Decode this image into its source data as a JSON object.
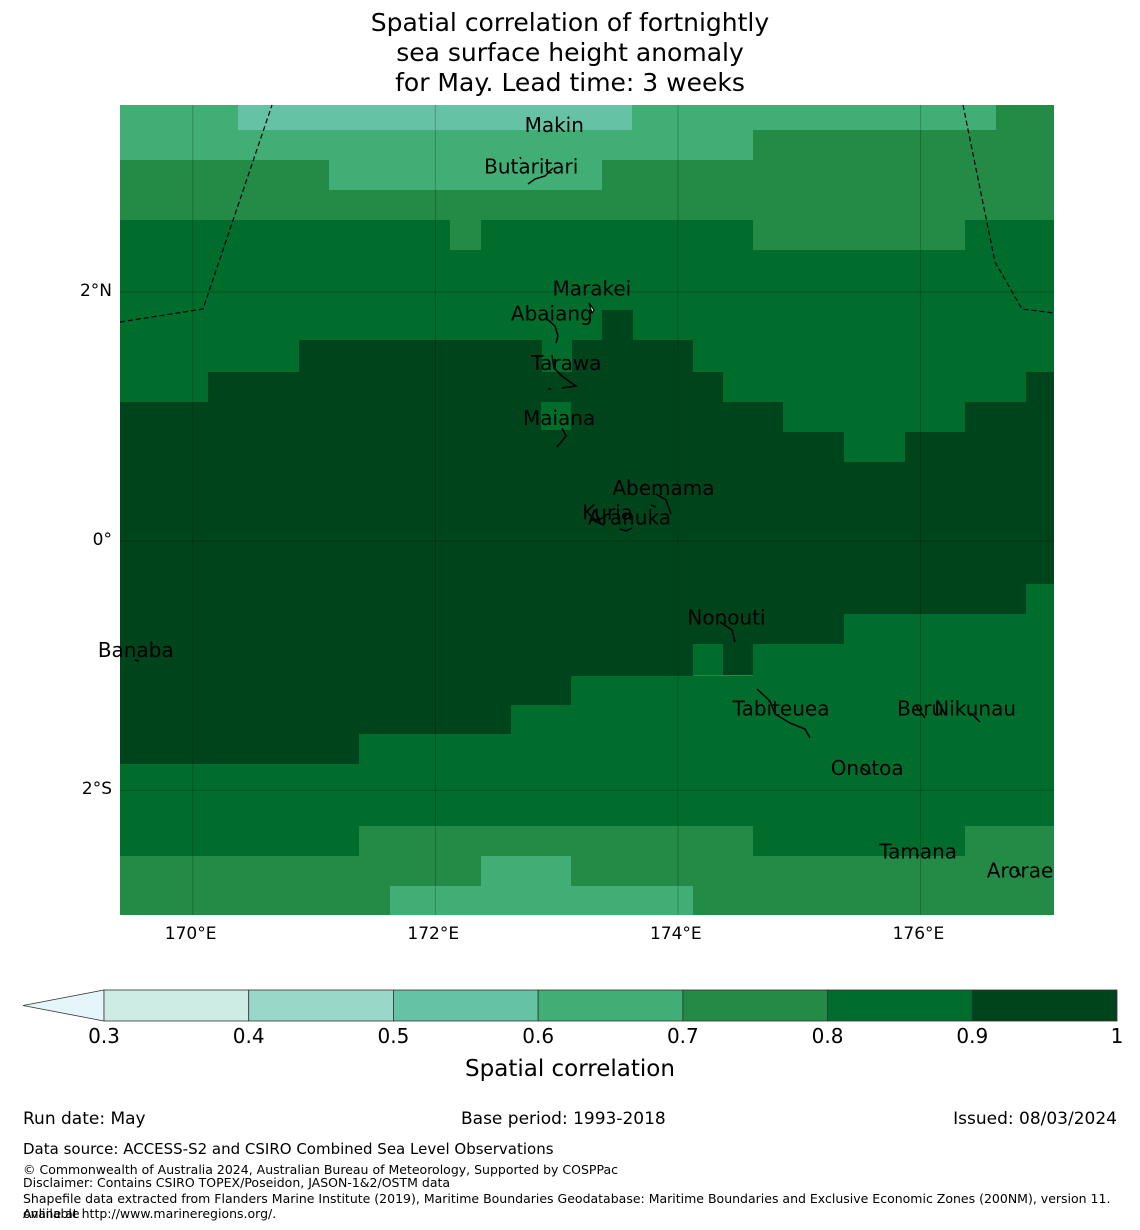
{
  "title": [
    "Spatial correlation of fortnightly",
    "sea surface height anomaly",
    "for May. Lead time: 3 weeks"
  ],
  "map": {
    "lon_range": [
      169.4,
      177.1
    ],
    "lat_range": [
      -3.0,
      3.5
    ],
    "x_ticks": [
      {
        "lon": 170,
        "label": "170°E"
      },
      {
        "lon": 172,
        "label": "172°E"
      },
      {
        "lon": 174,
        "label": "174°E"
      },
      {
        "lon": 176,
        "label": "176°E"
      }
    ],
    "y_ticks": [
      {
        "lat": 2,
        "label": "2°N"
      },
      {
        "lat": 0,
        "label": "0°"
      },
      {
        "lat": -2,
        "label": "2°S"
      }
    ],
    "islands": [
      {
        "name": "Makin",
        "lon": 172.98,
        "lat": 3.33
      },
      {
        "name": "Butaritari",
        "lon": 172.79,
        "lat": 3.0
      },
      {
        "name": "Marakei",
        "lon": 173.29,
        "lat": 2.02
      },
      {
        "name": "Abaiang",
        "lon": 172.96,
        "lat": 1.82
      },
      {
        "name": "Tarawa",
        "lon": 173.08,
        "lat": 1.42
      },
      {
        "name": "Maiana",
        "lon": 173.02,
        "lat": 0.98
      },
      {
        "name": "Abemama",
        "lon": 173.88,
        "lat": 0.42
      },
      {
        "name": "Kuria",
        "lon": 173.42,
        "lat": 0.22
      },
      {
        "name": "Aranuka",
        "lon": 173.6,
        "lat": 0.18
      },
      {
        "name": "Nonouti",
        "lon": 174.4,
        "lat": -0.62
      },
      {
        "name": "Banaba",
        "lon": 169.53,
        "lat": -0.88
      },
      {
        "name": "Tabiteuea",
        "lon": 174.85,
        "lat": -1.35
      },
      {
        "name": "Beru",
        "lon": 176.0,
        "lat": -1.35
      },
      {
        "name": "Nikunau",
        "lon": 176.45,
        "lat": -1.35
      },
      {
        "name": "Onotoa",
        "lon": 175.56,
        "lat": -1.83
      },
      {
        "name": "Tamana",
        "lon": 175.98,
        "lat": -2.5
      },
      {
        "name": "Arorae",
        "lon": 176.82,
        "lat": -2.65
      }
    ]
  },
  "colorbar": {
    "labels": [
      "0.3",
      "0.4",
      "0.5",
      "0.6",
      "0.7",
      "0.8",
      "0.9",
      "1"
    ],
    "colors": [
      "#cdece4",
      "#99d8c9",
      "#66c2a4",
      "#41ae76",
      "#238b45",
      "#006d2c",
      "#00441b"
    ],
    "extend_color": "#e5f5f9",
    "title": "Spatial correlation"
  },
  "info": {
    "run_date": "Run date: May",
    "base_period": "Base period: 1993-2018",
    "issued": "Issued: 08/03/2024"
  },
  "footer": {
    "data_source": "Data source: ACCESS-S2 and CSIRO Combined Sea Level Observations",
    "copyright": "© Commonwealth of Australia 2024, Australian Bureau of Meteorology, Supported by COSPPac",
    "disclaimer": "Disclaimer: Contains CSIRO TOPEX/Poseidon, JASON-1&2/OSTM data",
    "shapefile_1": "Shapefile data extracted from Flanders Marine Institute (2019), Maritime Boundaries Geodatabase: Maritime Boundaries and Exclusive Economic Zones (200NM), version 11. Available",
    "shapefile_2": "online at http://www.marineregions.org/."
  }
}
